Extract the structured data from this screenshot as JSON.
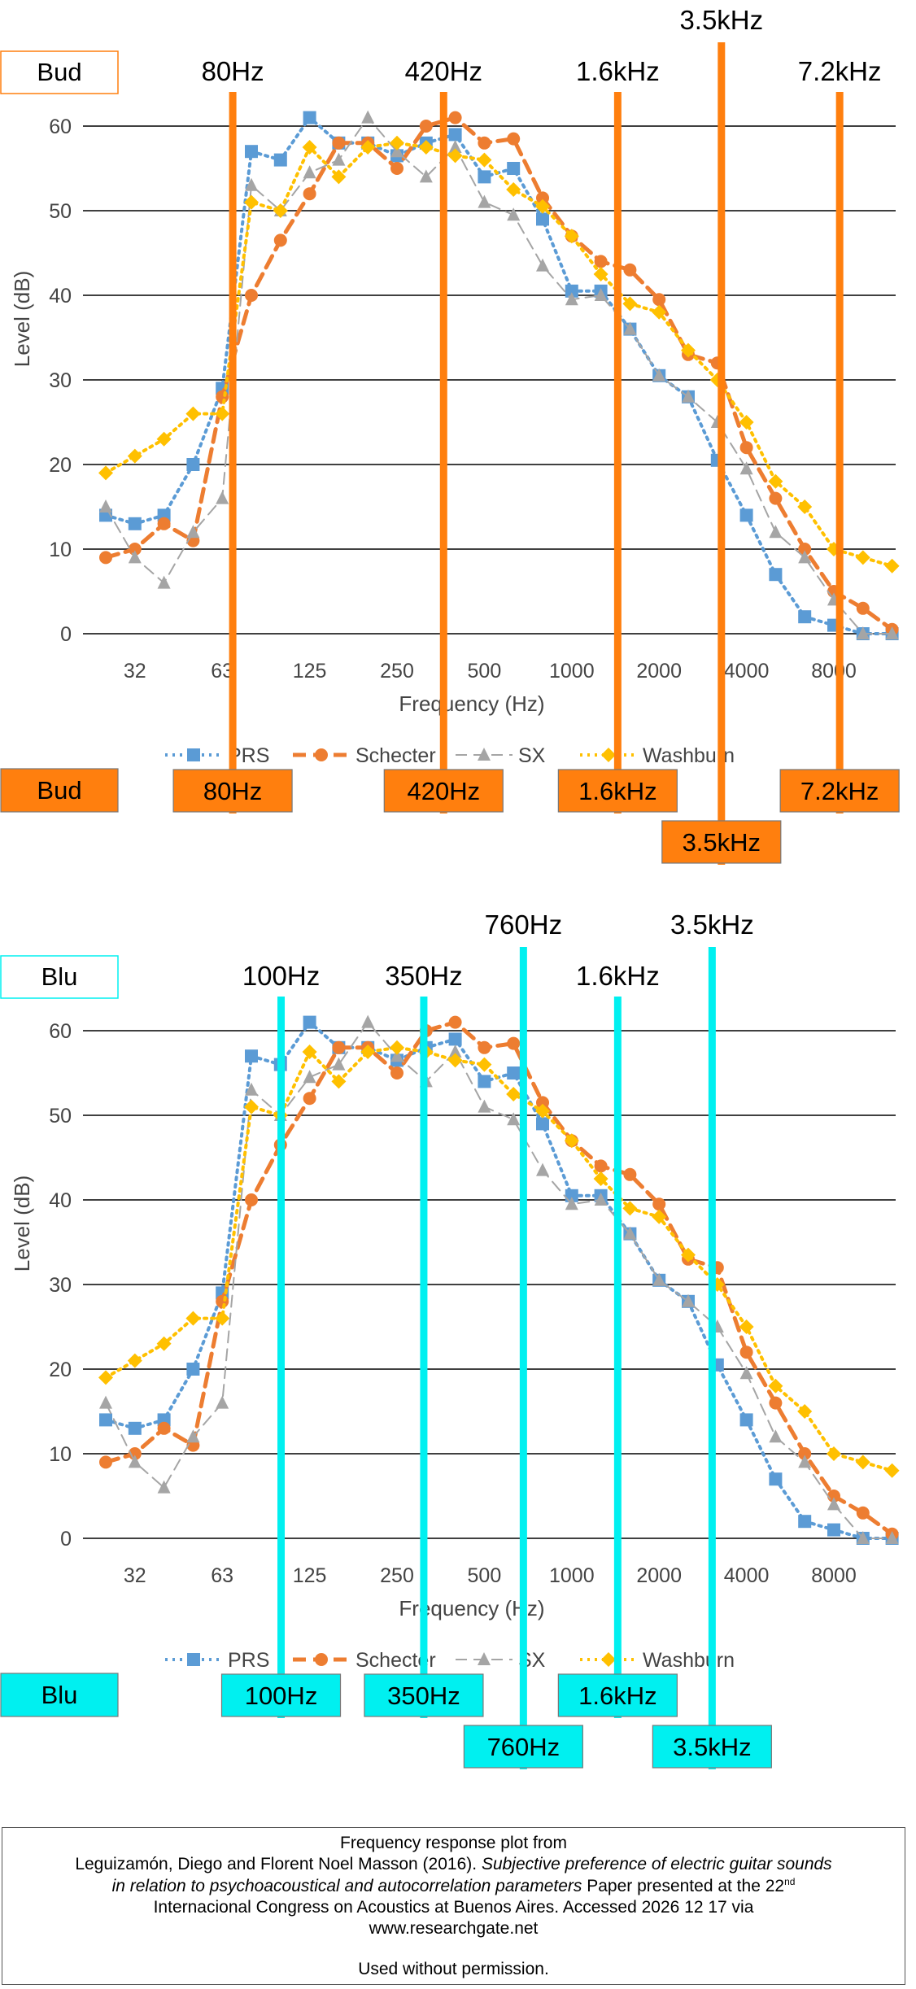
{
  "chart_data": [
    {
      "type": "line",
      "panel_label": "Bud",
      "ylabel": "Level (dB)",
      "xlabel": "Frequency (Hz)",
      "ylim": [
        0,
        60
      ],
      "yticks": [
        "0",
        "10",
        "20",
        "30",
        "40",
        "50",
        "60"
      ],
      "xtick_labels": [
        "32",
        "63",
        "125",
        "250",
        "500",
        "1000",
        "2000",
        "4000",
        "8000"
      ],
      "grid": true,
      "legend_position": "bottom",
      "series": [
        {
          "name": "PRS",
          "color": "#5b9bd5",
          "marker": "square",
          "values": [
            14,
            13,
            14,
            20,
            29,
            57,
            56,
            61,
            58,
            58,
            56.5,
            58,
            59,
            54,
            55,
            49,
            40.5,
            40.5,
            36,
            30.5,
            28,
            20.5,
            14,
            7,
            2,
            1,
            0,
            0
          ]
        },
        {
          "name": "Schecter",
          "color": "#ed7d31",
          "marker": "circle",
          "values": [
            9,
            10,
            13,
            11,
            28,
            40,
            46.5,
            52,
            58,
            58,
            55,
            60,
            61,
            58,
            58.5,
            51.5,
            47,
            44,
            43,
            39.5,
            33,
            32,
            22,
            16,
            10,
            5,
            3,
            0.5
          ]
        },
        {
          "name": "SX",
          "color": "#a5a5a5",
          "marker": "triangle",
          "values": [
            15,
            9,
            6,
            12,
            16,
            53,
            50,
            54.5,
            56,
            61,
            57,
            54,
            57.5,
            51,
            49.5,
            43.5,
            39.5,
            40,
            36,
            30.5,
            28,
            25,
            19.5,
            12,
            9,
            4,
            0,
            0
          ]
        },
        {
          "name": "Washburn",
          "color": "#ffc000",
          "marker": "diamond",
          "values": [
            19,
            21,
            23,
            26,
            26,
            51,
            50,
            57.5,
            54,
            57.5,
            58,
            57.5,
            56.5,
            56,
            52.5,
            50.5,
            47,
            42.5,
            39,
            38,
            33.5,
            30,
            25,
            18,
            15,
            10,
            9,
            8
          ]
        }
      ],
      "highlight_color": "#ff7f0e",
      "markers": [
        {
          "label": "80Hz",
          "pos": 4.36,
          "row": 0
        },
        {
          "label": "420Hz",
          "pos": 11.6,
          "row": 0
        },
        {
          "label": "1.6kHz",
          "pos": 17.58,
          "row": 0
        },
        {
          "label": "3.5kHz",
          "pos": 21.14,
          "row": 1
        },
        {
          "label": "7.2kHz",
          "pos": 25.2,
          "row": 0
        }
      ]
    },
    {
      "type": "line",
      "panel_label": "Blu",
      "ylabel": "Level (dB)",
      "xlabel": "Frequency (Hz)",
      "ylim": [
        0,
        60
      ],
      "yticks": [
        "0",
        "10",
        "20",
        "30",
        "40",
        "50",
        "60"
      ],
      "xtick_labels": [
        "32",
        "63",
        "125",
        "250",
        "500",
        "1000",
        "2000",
        "4000",
        "8000"
      ],
      "grid": true,
      "legend_position": "bottom",
      "series": [
        {
          "name": "PRS",
          "color": "#5b9bd5",
          "marker": "square",
          "values": [
            14,
            13,
            14,
            20,
            29,
            57,
            56,
            61,
            58,
            58,
            56.5,
            58,
            59,
            54,
            55,
            49,
            40.5,
            40.5,
            36,
            30.5,
            28,
            20.5,
            14,
            7,
            2,
            1,
            0,
            0
          ]
        },
        {
          "name": "Schecter",
          "color": "#ed7d31",
          "marker": "circle",
          "values": [
            9,
            10,
            13,
            11,
            28,
            40,
            46.5,
            52,
            58,
            58,
            55,
            60,
            61,
            58,
            58.5,
            51.5,
            47,
            44,
            43,
            39.5,
            33,
            32,
            22,
            16,
            10,
            5,
            3,
            0.5
          ]
        },
        {
          "name": "SX",
          "color": "#a5a5a5",
          "marker": "triangle",
          "values": [
            16,
            9,
            6,
            12,
            16,
            53,
            50,
            54.5,
            56,
            61,
            57,
            54,
            57.5,
            51,
            49.5,
            43.5,
            39.5,
            40,
            36,
            30.5,
            28,
            25,
            19.5,
            12,
            9,
            4,
            0,
            0
          ]
        },
        {
          "name": "Washburn",
          "color": "#ffc000",
          "marker": "diamond",
          "values": [
            19,
            21,
            23,
            26,
            26,
            51,
            50,
            57.5,
            54,
            57.5,
            58,
            57.5,
            56.5,
            56,
            52.5,
            50.5,
            47,
            42.5,
            39,
            38,
            33.5,
            30,
            25,
            18,
            15,
            10,
            9,
            8
          ]
        }
      ],
      "highlight_color": "#00f0f0",
      "markers": [
        {
          "label": "100Hz",
          "pos": 6.02,
          "row": 0
        },
        {
          "label": "350Hz",
          "pos": 10.92,
          "row": 0
        },
        {
          "label": "760Hz",
          "pos": 14.34,
          "row": 1
        },
        {
          "label": "1.6kHz",
          "pos": 17.58,
          "row": 0
        },
        {
          "label": "3.5kHz",
          "pos": 20.82,
          "row": 1
        }
      ]
    }
  ],
  "citation": {
    "line1": "Frequency response plot from",
    "line2_normal": "Leguizamón, Diego and Florent Noel Masson (2016). ",
    "line2_italic": "Subjective preference of electric guitar sounds",
    "line3_italic": "in relation to psychoacoustical and autocorrelation parameters",
    "line3_normal": " Paper presented at the 22",
    "line3_sup": "nd",
    "line4": "Internacional Congress on Acoustics at Buenos Aires. Accessed 2026 12 17 via",
    "line5": "www.researchgate.net",
    "line6": "Used without permission."
  }
}
